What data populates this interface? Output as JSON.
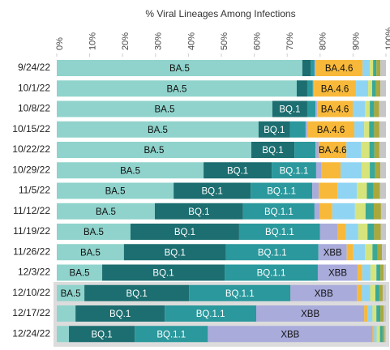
{
  "chart_data": {
    "type": "stacked-bar-horizontal",
    "title": "% Viral Lineages Among Infections",
    "categories": [
      "9/24/22",
      "10/1/22",
      "10/8/22",
      "10/15/22",
      "10/22/22",
      "10/29/22",
      "11/5/22",
      "11/12/22",
      "11/19/22",
      "11/26/22",
      "12/3/22",
      "12/10/22",
      "12/17/22",
      "12/24/22"
    ],
    "xlim": [
      0,
      100
    ],
    "xticks": [
      {
        "value": 0,
        "label": "0%"
      },
      {
        "value": 10,
        "label": "10%"
      },
      {
        "value": 20,
        "label": "20%"
      },
      {
        "value": 30,
        "label": "30%"
      },
      {
        "value": 40,
        "label": "40%"
      },
      {
        "value": 50,
        "label": "50%"
      },
      {
        "value": 60,
        "label": "60%"
      },
      {
        "value": 70,
        "label": "70%"
      },
      {
        "value": 80,
        "label": "80%"
      },
      {
        "value": 90,
        "label": "90%"
      },
      {
        "value": 100,
        "label": "100%"
      }
    ],
    "series": [
      {
        "name": "BA.5",
        "color": "#8fd3cc",
        "values": [
          74.6,
          72.9,
          65.5,
          61.3,
          59.1,
          44.6,
          35.5,
          29.8,
          22.4,
          20.4,
          13.8,
          8.4,
          5.7,
          3.7
        ]
      },
      {
        "name": "BQ.1",
        "color": "#1c6e70",
        "values": [
          2.5,
          3.2,
          10.6,
          9.6,
          13.1,
          20.7,
          23.4,
          26.8,
          33.0,
          31.0,
          37.2,
          31.8,
          27.1,
          20.0
        ]
      },
      {
        "name": "BQ.1.1",
        "color": "#2a989c",
        "values": [
          1.2,
          1.7,
          2.5,
          4.7,
          6.4,
          13.5,
          18.7,
          21.7,
          24.6,
          28.1,
          28.3,
          30.8,
          27.8,
          22.2
        ]
      },
      {
        "name": "XBB",
        "color": "#a9abdb",
        "values": [
          0.3,
          0.3,
          0.5,
          0.5,
          1.0,
          1.5,
          2.0,
          1.5,
          5.4,
          8.6,
          12.1,
          20.2,
          32.8,
          50.0
        ]
      },
      {
        "name": "BA.4.6",
        "color": "#f8b93a",
        "values": [
          14.3,
          12.8,
          10.8,
          14.3,
          8.4,
          5.9,
          5.7,
          3.9,
          2.5,
          2.0,
          1.4,
          1.5,
          1.0,
          0.5
        ]
      },
      {
        "color": "#8fd5f3",
        "values": [
          2.2,
          3.7,
          3.7,
          3.0,
          4.5,
          6.4,
          5.9,
          6.9,
          3.7,
          3.5,
          2.5,
          2.5,
          1.5,
          0.8
        ]
      },
      {
        "color": "#d6e47b",
        "values": [
          1.0,
          1.2,
          1.5,
          1.5,
          2.5,
          2.5,
          3.0,
          3.2,
          2.8,
          2.3,
          1.8,
          1.6,
          1.2,
          1.0
        ]
      },
      {
        "color": "#3aa896",
        "values": [
          1.0,
          1.2,
          1.3,
          1.5,
          1.5,
          1.6,
          2.0,
          2.5,
          2.0,
          1.6,
          1.2,
          1.2,
          1.2,
          0.8
        ]
      },
      {
        "color": "#a9a83c",
        "values": [
          1.2,
          1.3,
          1.5,
          1.6,
          1.5,
          1.6,
          2.0,
          2.2,
          2.0,
          1.3,
          1.0,
          1.0,
          1.0,
          0.6
        ]
      },
      {
        "color": "#c6c6c6",
        "values": [
          1.7,
          1.7,
          2.1,
          2.0,
          2.0,
          1.7,
          1.8,
          1.5,
          1.6,
          1.2,
          0.7,
          1.0,
          0.7,
          0.4
        ]
      }
    ]
  }
}
